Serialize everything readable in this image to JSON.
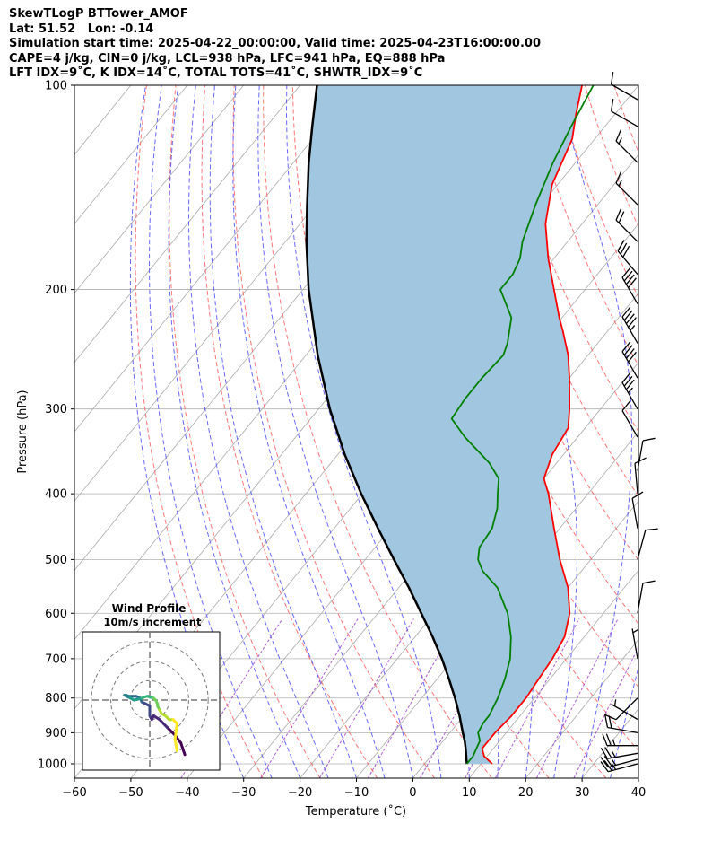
{
  "header": {
    "line1": "SkewTLogP BTTower_AMOF",
    "line2": "Lat: 51.52   Lon: -0.14",
    "line3": "Simulation start time: 2025-04-22_00:00:00, Valid time: 2025-04-23T16:00:00.00",
    "line4": "CAPE=4 j/kg, CIN=0 j/kg, LCL=938 hPa, LFC=941 hPa, EQ=888 hPa",
    "line5": "LFT IDX=9˚C, K IDX=14˚C, TOTAL TOTS=41˚C, SHWTR_IDX=9˚C"
  },
  "chart_data": {
    "type": "skewt",
    "xlabel": "Temperature (˚C)",
    "ylabel": "Pressure (hPa)",
    "xlim": [
      -60,
      40
    ],
    "ylim": [
      1050,
      100
    ],
    "xticks": [
      -60,
      -50,
      -40,
      -30,
      -20,
      -10,
      0,
      10,
      20,
      30,
      40
    ],
    "xtick_labels": [
      "−60",
      "−50",
      "−40",
      "−30",
      "−20",
      "−10",
      "0",
      "10",
      "20",
      "30",
      "40"
    ],
    "yticks": [
      1000,
      900,
      800,
      700,
      600,
      500,
      400,
      300,
      200,
      100
    ],
    "yscale": "log",
    "colors": {
      "temperature": "#ff0000",
      "dewpoint": "#008000",
      "parcel": "#000000",
      "cape_fill": "#a1c6e0",
      "dry_adiabats": "#ff5555",
      "moist_adiabats": "#4444ff",
      "mixing_ratio": "#9932cc",
      "isotherms": "#aaaaaa"
    },
    "temperature_profile": [
      [
        1000,
        12.0
      ],
      [
        975,
        9.5
      ],
      [
        950,
        8.0
      ],
      [
        925,
        8.0
      ],
      [
        900,
        8.0
      ],
      [
        850,
        8.5
      ],
      [
        800,
        8.5
      ],
      [
        750,
        8.0
      ],
      [
        700,
        7.5
      ],
      [
        650,
        6.5
      ],
      [
        600,
        4.0
      ],
      [
        550,
        0.0
      ],
      [
        500,
        -5.5
      ],
      [
        450,
        -11.0
      ],
      [
        400,
        -17.0
      ],
      [
        380,
        -20.0
      ],
      [
        350,
        -22.0
      ],
      [
        320,
        -23.0
      ],
      [
        300,
        -25.5
      ],
      [
        270,
        -30.0
      ],
      [
        250,
        -33.5
      ],
      [
        230,
        -38.0
      ],
      [
        220,
        -40.5
      ],
      [
        200,
        -45.5
      ],
      [
        180,
        -51.0
      ],
      [
        160,
        -56.5
      ],
      [
        140,
        -61.0
      ],
      [
        120,
        -64.0
      ],
      [
        110,
        -67.0
      ],
      [
        100,
        -70.0
      ]
    ],
    "dewpoint_profile": [
      [
        1000,
        7.5
      ],
      [
        975,
        7.5
      ],
      [
        950,
        7.0
      ],
      [
        925,
        6.5
      ],
      [
        900,
        5.0
      ],
      [
        870,
        4.5
      ],
      [
        850,
        4.5
      ],
      [
        800,
        3.5
      ],
      [
        750,
        2.0
      ],
      [
        700,
        0.0
      ],
      [
        650,
        -3.0
      ],
      [
        600,
        -7.0
      ],
      [
        550,
        -12.5
      ],
      [
        520,
        -17.5
      ],
      [
        500,
        -20.0
      ],
      [
        480,
        -21.5
      ],
      [
        450,
        -22.0
      ],
      [
        420,
        -24.0
      ],
      [
        400,
        -26.0
      ],
      [
        380,
        -28.0
      ],
      [
        360,
        -32.0
      ],
      [
        330,
        -40.0
      ],
      [
        310,
        -45.0
      ],
      [
        290,
        -45.5
      ],
      [
        270,
        -45.5
      ],
      [
        250,
        -45.0
      ],
      [
        240,
        -46.0
      ],
      [
        220,
        -49.0
      ],
      [
        200,
        -55.0
      ],
      [
        190,
        -55.0
      ],
      [
        180,
        -56.0
      ],
      [
        170,
        -58.0
      ],
      [
        150,
        -61.0
      ],
      [
        130,
        -64.0
      ],
      [
        115,
        -66.0
      ],
      [
        100,
        -68.0
      ]
    ],
    "parcel_profile": [
      [
        1000,
        7.5
      ],
      [
        975,
        6.3
      ],
      [
        950,
        5.1
      ],
      [
        925,
        3.8
      ],
      [
        900,
        2.3
      ],
      [
        850,
        -0.7
      ],
      [
        800,
        -4.1
      ],
      [
        750,
        -7.9
      ],
      [
        700,
        -12.1
      ],
      [
        650,
        -16.9
      ],
      [
        600,
        -22.3
      ],
      [
        550,
        -28.2
      ],
      [
        500,
        -34.9
      ],
      [
        450,
        -42.2
      ],
      [
        400,
        -50.2
      ],
      [
        350,
        -58.8
      ],
      [
        300,
        -68.0
      ],
      [
        250,
        -77.9
      ],
      [
        200,
        -89.0
      ],
      [
        170,
        -96.3
      ],
      [
        150,
        -101.5
      ],
      [
        130,
        -107.3
      ],
      [
        115,
        -111.9
      ],
      [
        100,
        -117.0
      ]
    ],
    "wind_barbs": [
      {
        "p": 1000,
        "spd": 25,
        "dir": 255
      },
      {
        "p": 985,
        "spd": 25,
        "dir": 255
      },
      {
        "p": 965,
        "spd": 25,
        "dir": 260
      },
      {
        "p": 940,
        "spd": 25,
        "dir": 270
      },
      {
        "p": 900,
        "spd": 20,
        "dir": 280
      },
      {
        "p": 860,
        "spd": 5,
        "dir": 300
      },
      {
        "p": 800,
        "spd": 10,
        "dir": 225
      },
      {
        "p": 700,
        "spd": 5,
        "dir": 350
      },
      {
        "p": 600,
        "spd": 10,
        "dir": 10
      },
      {
        "p": 500,
        "spd": 10,
        "dir": 15
      },
      {
        "p": 450,
        "spd": 10,
        "dir": 350
      },
      {
        "p": 400,
        "spd": 10,
        "dir": 355
      },
      {
        "p": 370,
        "spd": 10,
        "dir": 10
      },
      {
        "p": 330,
        "spd": 10,
        "dir": 330
      },
      {
        "p": 300,
        "spd": 35,
        "dir": 330
      },
      {
        "p": 270,
        "spd": 40,
        "dir": 330
      },
      {
        "p": 240,
        "spd": 45,
        "dir": 330
      },
      {
        "p": 210,
        "spd": 40,
        "dir": 330
      },
      {
        "p": 190,
        "spd": 30,
        "dir": 320
      },
      {
        "p": 170,
        "spd": 20,
        "dir": 315
      },
      {
        "p": 150,
        "spd": 15,
        "dir": 315
      },
      {
        "p": 130,
        "spd": 15,
        "dir": 315
      },
      {
        "p": 115,
        "spd": 10,
        "dir": 300
      },
      {
        "p": 105,
        "spd": 10,
        "dir": 300
      }
    ],
    "hodograph": {
      "title": "Wind Profile",
      "subtitle": "10m/s increment",
      "rings": [
        10,
        20,
        30
      ],
      "max": 35,
      "points": [
        [
          18,
          -28
        ],
        [
          16,
          -22
        ],
        [
          13,
          -18
        ],
        [
          9,
          -14
        ],
        [
          5,
          -10
        ],
        [
          2,
          -8
        ],
        [
          1,
          -10
        ],
        [
          0,
          -8
        ],
        [
          0,
          -5
        ],
        [
          0,
          -3
        ],
        [
          -2,
          -2
        ],
        [
          -4,
          -1
        ],
        [
          -5,
          1
        ],
        [
          -7,
          2
        ],
        [
          -9,
          2
        ],
        [
          -11,
          2
        ],
        [
          -12,
          2.5
        ],
        [
          -13,
          2.5
        ],
        [
          -12,
          2
        ],
        [
          -10,
          1
        ],
        [
          -8,
          0
        ],
        [
          -6,
          0.5
        ],
        [
          -4,
          1
        ],
        [
          -3,
          1.5
        ],
        [
          -1,
          2
        ],
        [
          0,
          1.5
        ],
        [
          2,
          1
        ],
        [
          3,
          0
        ],
        [
          4,
          -2
        ],
        [
          4,
          -3
        ],
        [
          5,
          -5
        ],
        [
          6,
          -7
        ],
        [
          8,
          -8
        ],
        [
          10,
          -10
        ],
        [
          12,
          -10
        ],
        [
          13,
          -11
        ],
        [
          14,
          -12
        ],
        [
          13,
          -20
        ],
        [
          14,
          -26
        ]
      ]
    }
  }
}
